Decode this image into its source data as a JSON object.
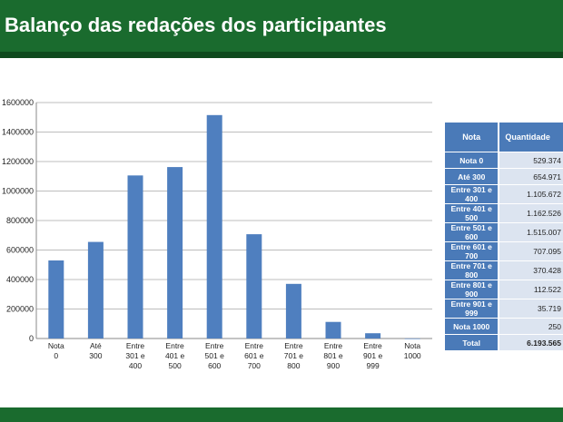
{
  "header": {
    "title": "Balanço das redações dos participantes"
  },
  "chart_data": {
    "type": "bar",
    "title": "",
    "xlabel": "",
    "ylabel": "",
    "categories": [
      [
        "Nota",
        "0"
      ],
      [
        "Até",
        "300"
      ],
      [
        "Entre",
        "301 e",
        "400"
      ],
      [
        "Entre",
        "401 e",
        "500"
      ],
      [
        "Entre",
        "501 e",
        "600"
      ],
      [
        "Entre",
        "601 e",
        "700"
      ],
      [
        "Entre",
        "701 e",
        "800"
      ],
      [
        "Entre",
        "801 e",
        "900"
      ],
      [
        "Entre",
        "901 e",
        "999"
      ],
      [
        "Nota",
        "1000"
      ]
    ],
    "values": [
      529374,
      654971,
      1105672,
      1162526,
      1515007,
      707095,
      370428,
      112522,
      35719,
      250
    ],
    "ylim": [
      0,
      1600000
    ],
    "yticks": [
      0,
      200000,
      400000,
      600000,
      800000,
      1000000,
      1200000,
      1400000,
      1600000
    ],
    "ytick_labels": [
      "0",
      "200000",
      "400000",
      "600000",
      "800000",
      "1000000",
      "1200000",
      "1400000",
      "1600000"
    ],
    "grid": true,
    "bar_color": "#4f7fbf"
  },
  "table": {
    "headers": [
      "Nota",
      "Quantidade"
    ],
    "rows": [
      {
        "label": "Nota 0",
        "value": "529.374"
      },
      {
        "label": "Até 300",
        "value": "654.971"
      },
      {
        "label": "Entre 301 e 400",
        "value": "1.105.672"
      },
      {
        "label": "Entre 401 e 500",
        "value": "1.162.526"
      },
      {
        "label": "Entre 501 e 600",
        "value": "1.515.007"
      },
      {
        "label": "Entre 601 e 700",
        "value": "707.095"
      },
      {
        "label": "Entre 701 e 800",
        "value": "370.428"
      },
      {
        "label": "Entre 801 e 900",
        "value": "112.522"
      },
      {
        "label": "Entre 901 e 999",
        "value": "35.719"
      },
      {
        "label": "Nota 1000",
        "value": "250"
      }
    ],
    "total": {
      "label": "Total",
      "value": "6.193.565"
    }
  }
}
